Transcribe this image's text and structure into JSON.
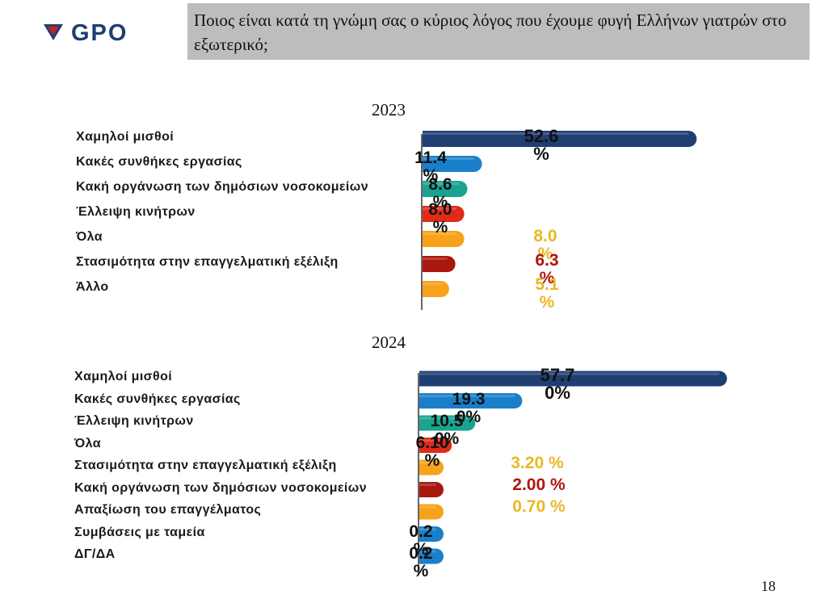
{
  "logo": {
    "text": "GPO",
    "icon": "gpo-logo-icon",
    "color": "#1c3f73",
    "accent": "#c4202a"
  },
  "header": {
    "title": "Ποιος είναι κατά τη γνώμη σας ο κύριος λόγος που έχουμε φυγή Ελλήνων γιατρών στο εξωτερικό;"
  },
  "page_number": "18",
  "chart_data": [
    {
      "type": "bar",
      "orientation": "horizontal",
      "title": "2023",
      "categories": [
        "Χαμηλοί μισθοί",
        "Κακές συνθήκες εργασίας",
        "Κακή οργάνωση των δημόσιων νοσοκομείων",
        "Έλλειψη κινήτρων",
        "Όλα",
        "Στασιμότητα στην  επαγγελματική εξέλιξη",
        "Άλλο"
      ],
      "values": [
        52.6,
        11.4,
        8.6,
        8.0,
        8.0,
        6.3,
        5.1
      ],
      "value_labels": [
        "52.6 %",
        "11.4 %",
        "8.6 %",
        "8.0 %",
        "8.0 %",
        "6.3 %",
        "5.1 %"
      ],
      "colors": [
        "#1f3e72",
        "#1a7fcb",
        "#1aa38f",
        "#e02a1a",
        "#f7a21b",
        "#a8180f",
        "#f7a21b"
      ]
    },
    {
      "type": "bar",
      "orientation": "horizontal",
      "title": "2024",
      "categories": [
        "Χαμηλοί μισθοί",
        "Κακές συνθήκες εργασίας",
        "Έλλειψη κινήτρων",
        "Όλα",
        "Στασιμότητα στην επαγγελματική εξέλιξη",
        "Κακή οργάνωση των δημόσιων νοσοκομείων",
        "Απαξίωση του επαγγέλματος",
        "Συμβάσεις με ταμεία",
        "ΔΓ/ΔΑ"
      ],
      "values": [
        57.7,
        19.3,
        10.5,
        6.1,
        3.2,
        2.0,
        0.7,
        0.2,
        0.2
      ],
      "value_labels": [
        "57.7 0%",
        "19.3 0%",
        "10.5 0%",
        "6.10 %",
        "3.20 %",
        "2.00 %",
        "0.70 %",
        "0.2 %",
        "0.2 %"
      ],
      "colors": [
        "#1f3e72",
        "#1a7fcb",
        "#1aa38f",
        "#e02a1a",
        "#f7a21b",
        "#a8180f",
        "#f7a21b",
        "#1a7fcb",
        "#1a7fcb"
      ]
    }
  ]
}
